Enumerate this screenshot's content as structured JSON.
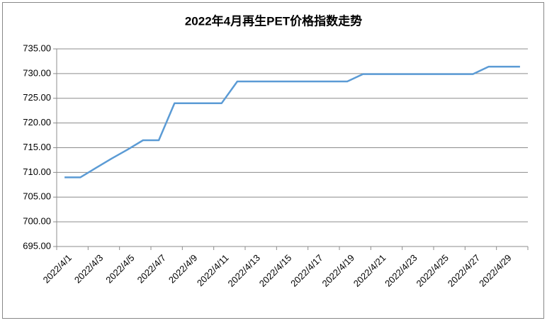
{
  "chart_data": {
    "type": "line",
    "title": "2022年4月再生PET价格指数走势",
    "categories": [
      "2022/4/1",
      null,
      "2022/4/3",
      null,
      "2022/4/5",
      null,
      "2022/4/7",
      null,
      "2022/4/9",
      null,
      "2022/4/11",
      null,
      "2022/4/13",
      null,
      "2022/4/15",
      null,
      "2022/4/17",
      null,
      "2022/4/19",
      null,
      "2022/4/21",
      null,
      "2022/4/23",
      null,
      "2022/4/25",
      null,
      "2022/4/27",
      null,
      "2022/4/29",
      null
    ],
    "values": [
      709,
      709,
      710.9,
      712.8,
      714.6,
      716.5,
      716.5,
      724,
      724,
      724,
      724,
      728.4,
      728.4,
      728.4,
      728.4,
      728.4,
      728.4,
      728.4,
      728.4,
      729.9,
      729.9,
      729.9,
      729.9,
      729.9,
      729.9,
      729.9,
      729.9,
      731.4,
      731.4,
      731.4
    ],
    "color": "#5b9bd5",
    "ylim": [
      695,
      735
    ],
    "yticks": [
      {
        "value": 695,
        "label": "695.00"
      },
      {
        "value": 700,
        "label": "700.00"
      },
      {
        "value": 705,
        "label": "705.00"
      },
      {
        "value": 710,
        "label": "710.00"
      },
      {
        "value": 715,
        "label": "715.00"
      },
      {
        "value": 720,
        "label": "720.00"
      },
      {
        "value": 725,
        "label": "725.00"
      },
      {
        "value": 730,
        "label": "730.00"
      },
      {
        "value": 735,
        "label": "735.00"
      }
    ],
    "grid": true
  }
}
